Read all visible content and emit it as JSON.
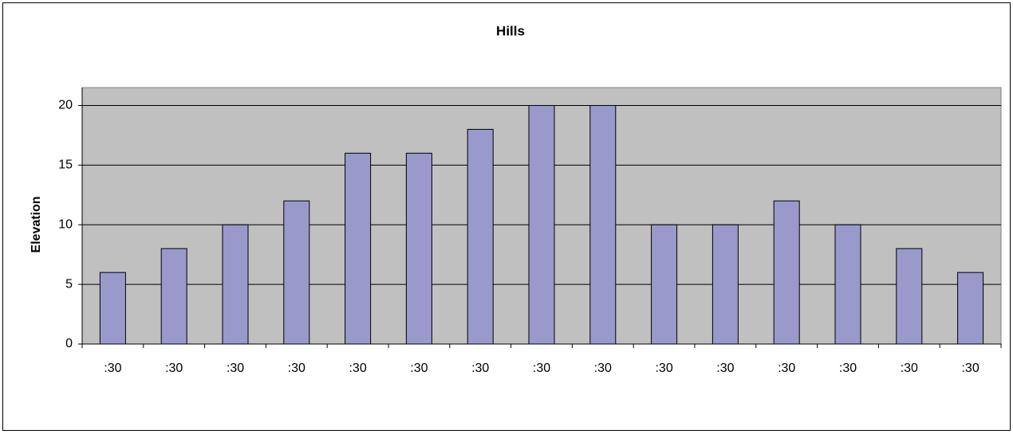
{
  "chart_data": {
    "type": "bar",
    "title": "Hills",
    "y_label": "Elevation",
    "categories": [
      ":30",
      ":30",
      ":30",
      ":30",
      ":30",
      ":30",
      ":30",
      ":30",
      ":30",
      ":30",
      ":30",
      ":30",
      ":30",
      ":30",
      ":30"
    ],
    "values": [
      6,
      8,
      10,
      12,
      16,
      16,
      18,
      20,
      20,
      10,
      10,
      12,
      10,
      8,
      6
    ],
    "color": "#9999cc",
    "ylim": [
      0,
      21.5
    ],
    "yticks": [
      0,
      5,
      10,
      15,
      20
    ],
    "grid": true
  }
}
